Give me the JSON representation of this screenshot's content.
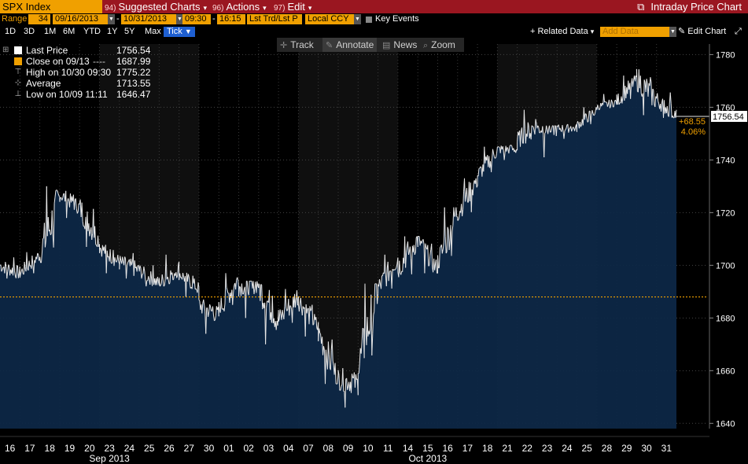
{
  "header": {
    "ticker": "SPX Index",
    "menus": [
      {
        "num": "94)",
        "label": "Suggested Charts"
      },
      {
        "num": "96)",
        "label": "Actions"
      },
      {
        "num": "97)",
        "label": "Edit"
      }
    ],
    "title": "Intraday Price Chart"
  },
  "controls": {
    "range_label": "Range",
    "range_days": "34",
    "start_date": "09/16/2013",
    "end_date": "10/31/2013",
    "start_time": "09:30",
    "end_time": "16:15",
    "price_type": "Lst Trd/Lst P",
    "currency": "Local CCY",
    "key_events": "Key Events"
  },
  "range_buttons": [
    "1D",
    "3D",
    "1M",
    "6M",
    "YTD",
    "1Y",
    "5Y",
    "Max"
  ],
  "period": "Tick",
  "related_data": "+ Related Data",
  "add_data_placeholder": "Add Data",
  "edit_chart": "Edit Chart",
  "tools": [
    "Track",
    "Annotate",
    "News",
    "Zoom"
  ],
  "legend": {
    "last_price_label": "Last Price",
    "last_price": "1756.54",
    "close_label": "Close on 09/13",
    "close_value": "1687.99",
    "high_label": "High on 10/30 09:30",
    "high_value": "1775.22",
    "avg_label": "Average",
    "avg_value": "1713.55",
    "low_label": "Low on 10/09 11:11",
    "low_value": "1646.47"
  },
  "last_tag": "1756.54",
  "change_abs": "+68.55",
  "change_pct": "4.06%",
  "colors": {
    "bg": "#000000",
    "title_bar": "#9a1620",
    "accent": "#f0a000",
    "area": "#0d2848",
    "line": "#e8e8e8",
    "band": "#0f0f0f",
    "ref_line": "#f0a000"
  },
  "chart_data": {
    "type": "area",
    "title": "",
    "ylim": [
      1638,
      1784
    ],
    "y_ticks": [
      1640,
      1660,
      1680,
      1700,
      1720,
      1740,
      1760,
      1780
    ],
    "reference_close": 1687.99,
    "day_labels": [
      "16",
      "17",
      "18",
      "19",
      "20",
      "23",
      "24",
      "25",
      "26",
      "27",
      "30",
      "01",
      "02",
      "03",
      "04",
      "07",
      "08",
      "09",
      "10",
      "11",
      "14",
      "15",
      "16",
      "17",
      "18",
      "21",
      "22",
      "23",
      "24",
      "25",
      "28",
      "29",
      "30",
      "31"
    ],
    "month_labels": [
      {
        "label": "Sep 2013",
        "day_index": 5
      },
      {
        "label": "Oct 2013",
        "day_index": 21
      }
    ],
    "days": [
      {
        "date": "09/16",
        "o": 1700,
        "h": 1705,
        "l": 1695,
        "c": 1697
      },
      {
        "date": "09/17",
        "o": 1697,
        "h": 1705,
        "l": 1695,
        "c": 1704
      },
      {
        "date": "09/18",
        "o": 1704,
        "h": 1730,
        "l": 1701,
        "c": 1725
      },
      {
        "date": "09/19",
        "o": 1727,
        "h": 1729,
        "l": 1718,
        "c": 1722
      },
      {
        "date": "09/20",
        "o": 1722,
        "h": 1725,
        "l": 1707,
        "c": 1709
      },
      {
        "date": "09/23",
        "o": 1707,
        "h": 1708,
        "l": 1697,
        "c": 1701
      },
      {
        "date": "09/24",
        "o": 1701,
        "h": 1707,
        "l": 1695,
        "c": 1698
      },
      {
        "date": "09/25",
        "o": 1698,
        "h": 1702,
        "l": 1692,
        "c": 1693
      },
      {
        "date": "09/26",
        "o": 1693,
        "h": 1704,
        "l": 1692,
        "c": 1699
      },
      {
        "date": "09/27",
        "o": 1697,
        "h": 1698,
        "l": 1688,
        "c": 1691
      },
      {
        "date": "09/30",
        "o": 1685,
        "h": 1687,
        "l": 1674,
        "c": 1681
      },
      {
        "date": "10/01",
        "o": 1683,
        "h": 1697,
        "l": 1682,
        "c": 1695
      },
      {
        "date": "10/02",
        "o": 1692,
        "h": 1694,
        "l": 1680,
        "c": 1693
      },
      {
        "date": "10/03",
        "o": 1692,
        "h": 1693,
        "l": 1670,
        "c": 1679
      },
      {
        "date": "10/04",
        "o": 1679,
        "h": 1691,
        "l": 1675,
        "c": 1689
      },
      {
        "date": "10/07",
        "o": 1687,
        "h": 1688,
        "l": 1673,
        "c": 1676
      },
      {
        "date": "10/08",
        "o": 1675,
        "h": 1676,
        "l": 1655,
        "c": 1656
      },
      {
        "date": "10/09",
        "o": 1657,
        "h": 1662,
        "l": 1646,
        "c": 1655
      },
      {
        "date": "10/10",
        "o": 1660,
        "h": 1693,
        "l": 1659,
        "c": 1692
      },
      {
        "date": "10/11",
        "o": 1691,
        "h": 1704,
        "l": 1688,
        "c": 1703
      },
      {
        "date": "10/14",
        "o": 1699,
        "h": 1711,
        "l": 1693,
        "c": 1710
      },
      {
        "date": "10/15",
        "o": 1710,
        "h": 1711,
        "l": 1697,
        "c": 1698
      },
      {
        "date": "10/16",
        "o": 1700,
        "h": 1722,
        "l": 1699,
        "c": 1721
      },
      {
        "date": "10/17",
        "o": 1720,
        "h": 1733,
        "l": 1717,
        "c": 1733
      },
      {
        "date": "10/18",
        "o": 1734,
        "h": 1745,
        "l": 1733,
        "c": 1744
      },
      {
        "date": "10/21",
        "o": 1744,
        "h": 1747,
        "l": 1740,
        "c": 1744
      },
      {
        "date": "10/22",
        "o": 1747,
        "h": 1759,
        "l": 1745,
        "c": 1754
      },
      {
        "date": "10/23",
        "o": 1752,
        "h": 1753,
        "l": 1741,
        "c": 1752
      },
      {
        "date": "10/24",
        "o": 1752,
        "h": 1754,
        "l": 1748,
        "c": 1752
      },
      {
        "date": "10/25",
        "o": 1753,
        "h": 1760,
        "l": 1752,
        "c": 1759
      },
      {
        "date": "10/28",
        "o": 1760,
        "h": 1765,
        "l": 1759,
        "c": 1762
      },
      {
        "date": "10/29",
        "o": 1762,
        "h": 1772,
        "l": 1761,
        "c": 1771
      },
      {
        "date": "10/30",
        "o": 1771,
        "h": 1775,
        "l": 1757,
        "c": 1763
      },
      {
        "date": "10/31",
        "o": 1763,
        "h": 1768,
        "l": 1756,
        "c": 1757
      }
    ]
  }
}
